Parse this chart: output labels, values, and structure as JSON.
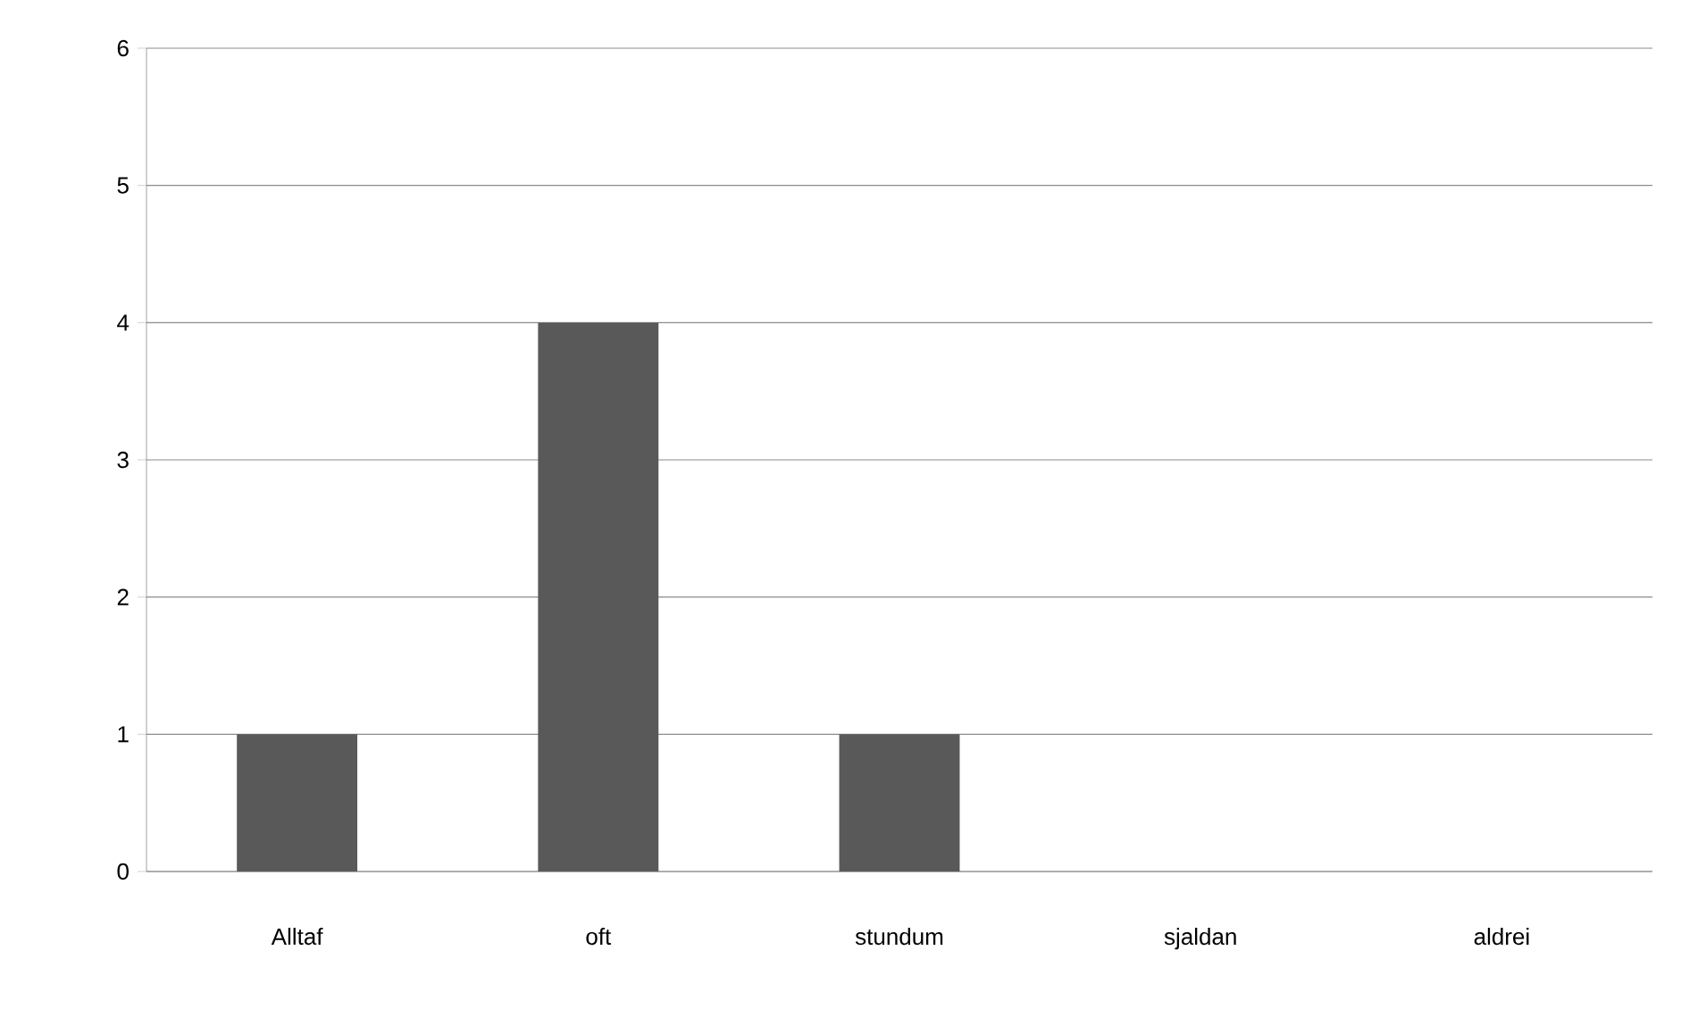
{
  "chart_data": {
    "type": "bar",
    "categories": [
      "Alltaf",
      "oft",
      "stundum",
      "sjaldan",
      "aldrei"
    ],
    "values": [
      1,
      4,
      1,
      0,
      0
    ],
    "color": "#595959",
    "ylim": [
      0,
      6
    ],
    "yticks": [
      0,
      1,
      2,
      3,
      4,
      5,
      6
    ],
    "grid": "y"
  }
}
